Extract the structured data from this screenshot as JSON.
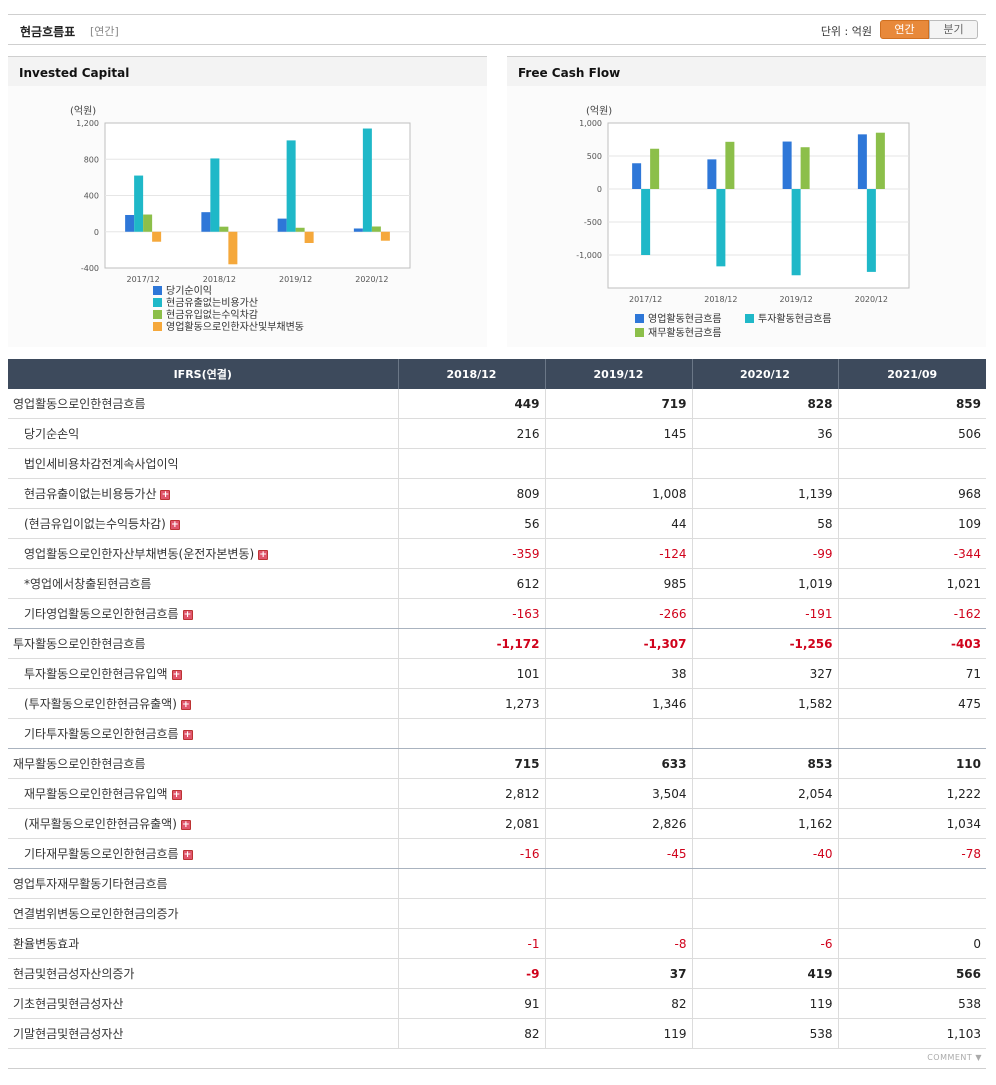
{
  "header": {
    "title": "현금흐름표",
    "subtitle": "[연간]",
    "unit": "단위 : 억원",
    "tab_annual": "연간",
    "tab_quarter": "분기"
  },
  "panels": {
    "left_title": "Invested Capital",
    "right_title": "Free Cash Flow"
  },
  "chart_data": [
    {
      "type": "bar",
      "title": "Invested Capital",
      "ylabel": "(억원)",
      "categories": [
        "2017/12",
        "2018/12",
        "2019/12",
        "2020/12"
      ],
      "ylim": [
        -400,
        1200
      ],
      "yticks": [
        -400,
        0,
        400,
        800,
        1200
      ],
      "ytick_labels": [
        "-400",
        "0",
        "400",
        "800",
        "1,200"
      ],
      "grid": true,
      "legend": "bottom",
      "series": [
        {
          "name": "당기순이익",
          "color": "#2e77d8",
          "values": [
            185,
            216,
            145,
            36
          ]
        },
        {
          "name": "현금유출없는비용가산",
          "color": "#1fb8c8",
          "values": [
            620,
            809,
            1008,
            1139
          ]
        },
        {
          "name": "현금유입없는수익차감",
          "color": "#8cbf4a",
          "values": [
            190,
            56,
            44,
            58
          ]
        },
        {
          "name": "영업활동으로인한자산및부채변동",
          "color": "#f5a83b",
          "values": [
            -110,
            -359,
            -124,
            -99
          ]
        }
      ]
    },
    {
      "type": "bar",
      "title": "Free Cash Flow",
      "ylabel": "(억원)",
      "categories": [
        "2017/12",
        "2018/12",
        "2019/12",
        "2020/12"
      ],
      "ylim": [
        -1500,
        1000
      ],
      "yticks": [
        -1000,
        -500,
        0,
        500,
        1000
      ],
      "ytick_labels": [
        "-1,000",
        "-500",
        "0",
        "500",
        "1,000"
      ],
      "grid": true,
      "legend": "bottom",
      "series": [
        {
          "name": "영업활동현금흐름",
          "color": "#2e77d8",
          "values": [
            390,
            449,
            719,
            828
          ]
        },
        {
          "name": "투자활동현금흐름",
          "color": "#1fb8c8",
          "values": [
            -1000,
            -1172,
            -1307,
            -1256
          ]
        },
        {
          "name": "재무활동현금흐름",
          "color": "#8cbf4a",
          "values": [
            610,
            715,
            633,
            853
          ]
        }
      ]
    }
  ],
  "table": {
    "header": [
      "IFRS(연결)",
      "2018/12",
      "2019/12",
      "2020/12",
      "2021/09"
    ],
    "rows": [
      {
        "label": "영업활동으로인한현금흐름",
        "level": "main",
        "values": [
          "449",
          "719",
          "828",
          "859"
        ]
      },
      {
        "label": "당기순손익",
        "level": "sub",
        "values": [
          "216",
          "145",
          "36",
          "506"
        ]
      },
      {
        "label": "법인세비용차감전계속사업이익",
        "level": "sub",
        "values": [
          "",
          "",
          "",
          ""
        ]
      },
      {
        "label": "현금유출이없는비용등가산",
        "level": "sub",
        "plus": true,
        "values": [
          "809",
          "1,008",
          "1,139",
          "968"
        ]
      },
      {
        "label": "(현금유입이없는수익등차감)",
        "level": "sub",
        "plus": true,
        "values": [
          "56",
          "44",
          "58",
          "109"
        ]
      },
      {
        "label": "영업활동으로인한자산부채변동(운전자본변동)",
        "level": "sub",
        "plus": true,
        "values": [
          "-359",
          "-124",
          "-99",
          "-344"
        ]
      },
      {
        "label": "*영업에서창출된현금흐름",
        "level": "sub",
        "values": [
          "612",
          "985",
          "1,019",
          "1,021"
        ]
      },
      {
        "label": "기타영업활동으로인한현금흐름",
        "level": "sub",
        "plus": true,
        "values": [
          "-163",
          "-266",
          "-191",
          "-162"
        ],
        "grp": true
      },
      {
        "label": "투자활동으로인한현금흐름",
        "level": "main",
        "values": [
          "-1,172",
          "-1,307",
          "-1,256",
          "-403"
        ]
      },
      {
        "label": "투자활동으로인한현금유입액",
        "level": "sub",
        "plus": true,
        "values": [
          "101",
          "38",
          "327",
          "71"
        ]
      },
      {
        "label": "(투자활동으로인한현금유출액)",
        "level": "sub",
        "plus": true,
        "values": [
          "1,273",
          "1,346",
          "1,582",
          "475"
        ]
      },
      {
        "label": "기타투자활동으로인한현금흐름",
        "level": "sub",
        "plus": true,
        "values": [
          "",
          "",
          "",
          ""
        ],
        "grp": true
      },
      {
        "label": "재무활동으로인한현금흐름",
        "level": "main",
        "values": [
          "715",
          "633",
          "853",
          "110"
        ]
      },
      {
        "label": "재무활동으로인한현금유입액",
        "level": "sub",
        "plus": true,
        "values": [
          "2,812",
          "3,504",
          "2,054",
          "1,222"
        ]
      },
      {
        "label": "(재무활동으로인한현금유출액)",
        "level": "sub",
        "plus": true,
        "values": [
          "2,081",
          "2,826",
          "1,162",
          "1,034"
        ]
      },
      {
        "label": "기타재무활동으로인한현금흐름",
        "level": "sub",
        "plus": true,
        "values": [
          "-16",
          "-45",
          "-40",
          "-78"
        ],
        "grp": true
      },
      {
        "label": "영업투자재무활동기타현금흐름",
        "level": "top",
        "values": [
          "",
          "",
          "",
          ""
        ]
      },
      {
        "label": "연결범위변동으로인한현금의증가",
        "level": "top",
        "values": [
          "",
          "",
          "",
          ""
        ]
      },
      {
        "label": "환율변동효과",
        "level": "top",
        "values": [
          "-1",
          "-8",
          "-6",
          "0"
        ]
      },
      {
        "label": "현금및현금성자산의증가",
        "level": "main",
        "values": [
          "-9",
          "37",
          "419",
          "566"
        ]
      },
      {
        "label": "기초현금및현금성자산",
        "level": "top",
        "values": [
          "91",
          "82",
          "119",
          "538"
        ]
      },
      {
        "label": "기말현금및현금성자산",
        "level": "top",
        "values": [
          "82",
          "119",
          "538",
          "1,103"
        ]
      }
    ]
  },
  "footer": {
    "comment": "COMMENT ▼"
  }
}
